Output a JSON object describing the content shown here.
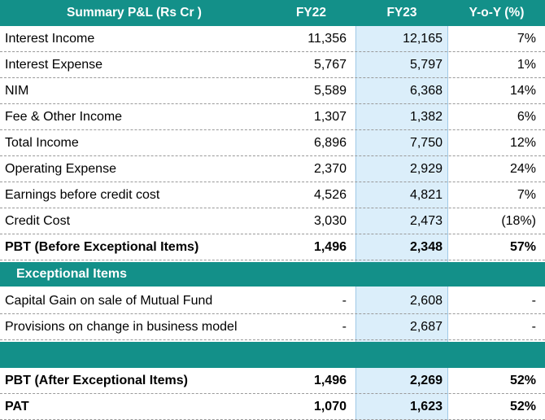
{
  "header": {
    "label": "Summary  P&L (Rs Cr )",
    "fy22": "FY22",
    "fy23": "FY23",
    "yoy": "Y-o-Y (%)"
  },
  "rows": [
    {
      "label": "Interest Income",
      "fy22": "11,356",
      "fy23": "12,165",
      "yoy": "7%"
    },
    {
      "label": "Interest Expense",
      "fy22": "5,767",
      "fy23": "5,797",
      "yoy": "1%"
    },
    {
      "label": "NIM",
      "fy22": "5,589",
      "fy23": "6,368",
      "yoy": "14%"
    },
    {
      "label": "Fee & Other Income",
      "fy22": "1,307",
      "fy23": "1,382",
      "yoy": "6%"
    },
    {
      "label": "Total Income",
      "fy22": "6,896",
      "fy23": "7,750",
      "yoy": "12%"
    },
    {
      "label": "Operating Expense",
      "fy22": "2,370",
      "fy23": "2,929",
      "yoy": "24%"
    },
    {
      "label": "Earnings before credit cost",
      "fy22": "4,526",
      "fy23": "4,821",
      "yoy": "7%"
    },
    {
      "label": "Credit Cost",
      "fy22": "3,030",
      "fy23": "2,473",
      "yoy": "(18%)"
    },
    {
      "label": "PBT (Before Exceptional Items)",
      "fy22": "1,496",
      "fy23": "2,348",
      "yoy": "57%"
    }
  ],
  "exceptional": {
    "label": "Exceptional Items",
    "rows": [
      {
        "label": "Capital Gain on sale of Mutual Fund",
        "fy22": "-",
        "fy23": "2,608",
        "yoy": "-"
      },
      {
        "label": "Provisions on change in business model",
        "fy22": "-",
        "fy23": "2,687",
        "yoy": "-"
      }
    ]
  },
  "totals": [
    {
      "label": "PBT (After Exceptional Items)",
      "fy22": "1,496",
      "fy23": "2,269",
      "yoy": "52%"
    },
    {
      "label": "PAT",
      "fy22": "1,070",
      "fy23": "1,623",
      "yoy": "52%"
    }
  ],
  "colors": {
    "header_teal": "#139089",
    "fy23_highlight": "#dbeefa"
  }
}
